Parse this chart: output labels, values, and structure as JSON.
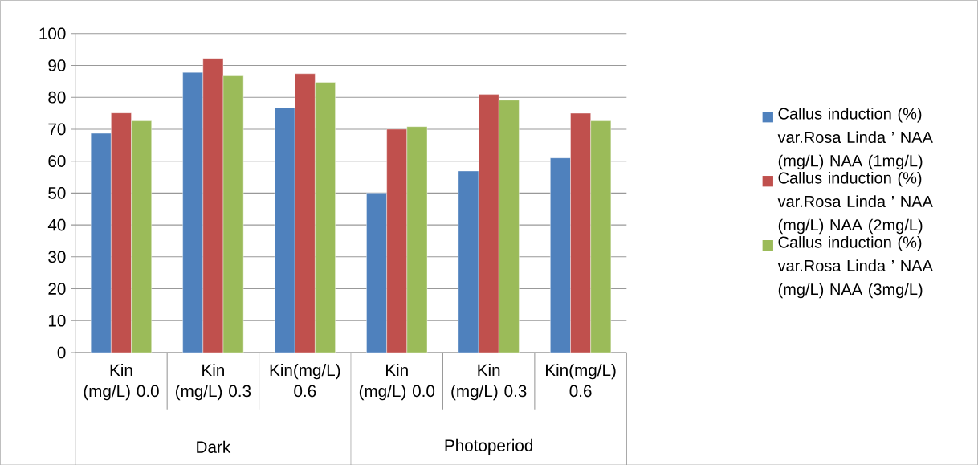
{
  "chart_data": {
    "type": "bar",
    "categories": [
      "Kin (mg/L) 0.0",
      "Kin (mg/L) 0.3",
      "Kin(mg/L) 0.6",
      "Kin (mg/L) 0.0",
      "Kin (mg/L) 0.3",
      "Kin(mg/L) 0.6"
    ],
    "series": [
      {
        "name": "Callus induction (%) var.Rosa Linda ’ NAA (mg/L) NAA (1mg/L)",
        "color": "#4f81bd",
        "values": [
          68.7,
          87.8,
          76.7,
          50,
          56.9,
          61
        ]
      },
      {
        "name": "Callus induction (%) var.Rosa Linda ’ NAA (mg/L) NAA (2mg/L)",
        "color": "#c0504d",
        "values": [
          75.1,
          92.2,
          87.4,
          70,
          80.9,
          75
        ]
      },
      {
        "name": "Callus induction (%) var.Rosa Linda ’ NAA (mg/L) NAA (3mg/L)",
        "color": "#9bbb59",
        "values": [
          72.6,
          86.7,
          84.7,
          70.8,
          79.1,
          72.6
        ]
      }
    ],
    "ylim": [
      0,
      100
    ],
    "yticks": [
      0,
      10,
      20,
      30,
      40,
      50,
      60,
      70,
      80,
      90,
      100
    ],
    "grid": "y",
    "legend": "right",
    "annotations": [
      "Dark",
      "Photoperiod"
    ]
  }
}
